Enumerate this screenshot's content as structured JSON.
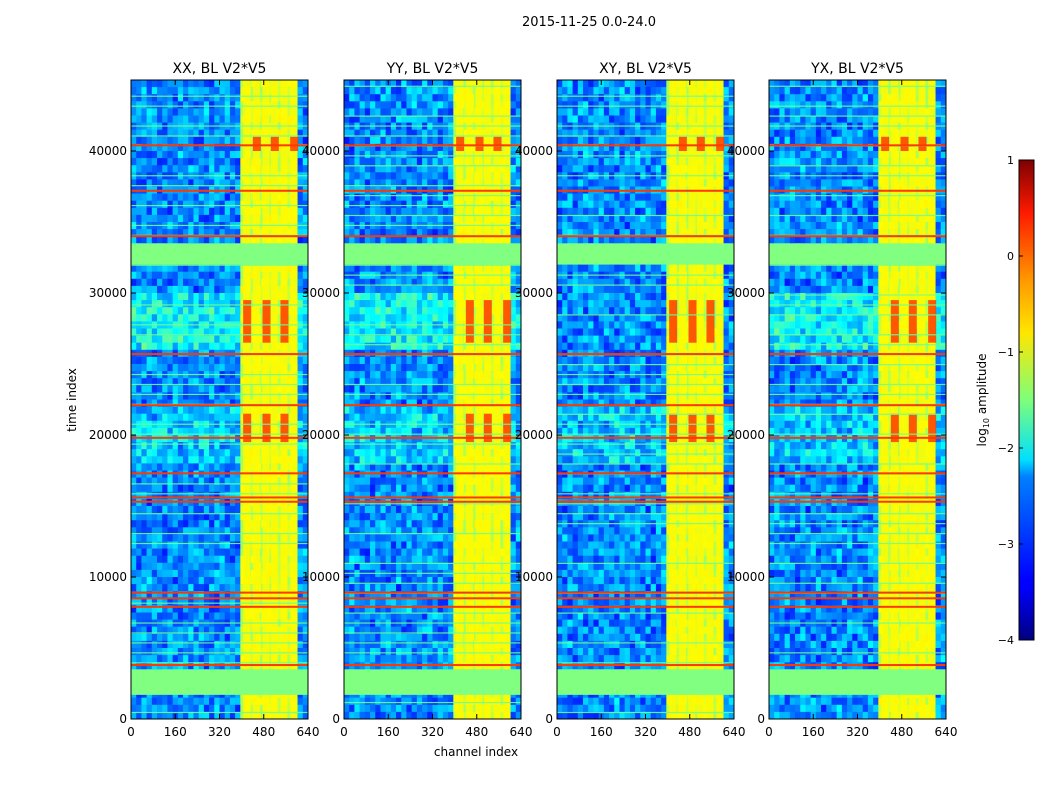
{
  "figure": {
    "suptitle": "2015-11-25 0.0-24.0"
  },
  "chart_data": {
    "type": "heatmap",
    "suptitle": "2015-11-25 0.0-24.0",
    "xlabel": "channel index",
    "ylabel": "time index",
    "xlim": [
      0,
      640
    ],
    "ylim": [
      0,
      45000
    ],
    "xticks": [
      0,
      160,
      320,
      480,
      640
    ],
    "yticks": [
      0,
      10000,
      20000,
      30000,
      40000
    ],
    "panels": [
      {
        "title": "XX, BL V2*V5",
        "polarization": "XX"
      },
      {
        "title": "YY, BL V2*V5",
        "polarization": "YY"
      },
      {
        "title": "XY, BL V2*V5",
        "polarization": "XY"
      },
      {
        "title": "YX, BL V2*V5",
        "polarization": "YX"
      }
    ],
    "colorbar": {
      "label": "log10 amplitude",
      "label_main": "log",
      "label_sub": "10",
      "label_rest": " amplitude",
      "range": [
        -4,
        1
      ],
      "ticks": [
        -4,
        -3,
        -2,
        -1,
        0,
        1
      ],
      "tick_labels": [
        "−4",
        "−3",
        "−2",
        "−1",
        "0",
        "1"
      ],
      "colormap": "jet"
    },
    "features": {
      "flagged_time_bands": [
        [
          1700,
          3500
        ],
        [
          32000,
          33500
        ]
      ],
      "rfi_time_rows": [
        3800,
        7900,
        8500,
        8900,
        15300,
        15600,
        17300,
        19800,
        22100,
        25700,
        34000,
        37200,
        40400
      ],
      "high_amplitude_channel_range": [
        400,
        600
      ],
      "bright_channel_columns": [
        420,
        455,
        490,
        520,
        555,
        590
      ]
    }
  }
}
